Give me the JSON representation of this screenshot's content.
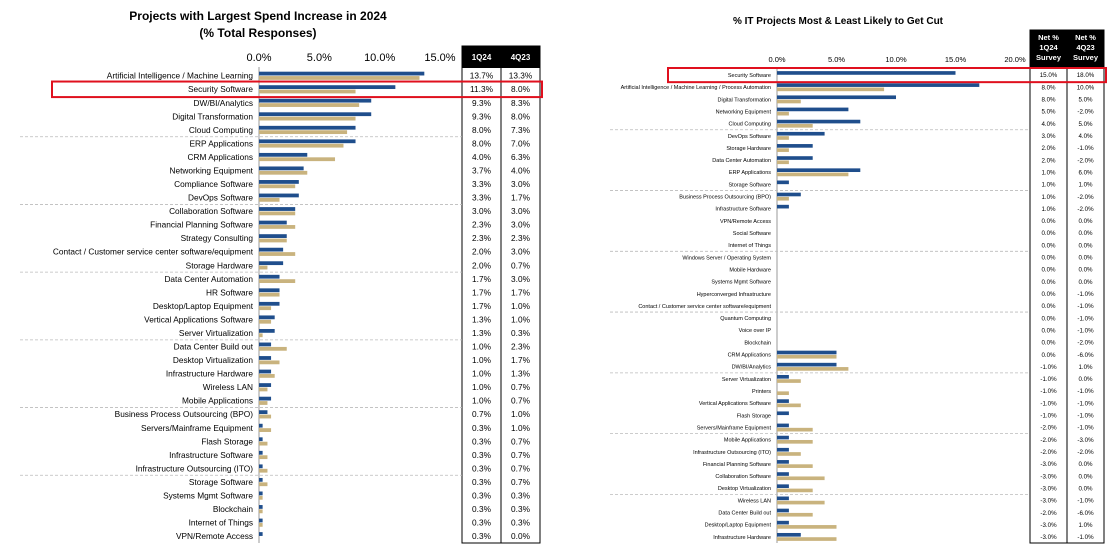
{
  "chart_data": [
    {
      "type": "bar",
      "title": "Projects with Largest Spend Increase in 2024",
      "subtitle": "(% Total Responses)",
      "xlim": [
        0,
        15
      ],
      "x_ticks": [
        "0.0%",
        "5.0%",
        "10.0%",
        "15.0%"
      ],
      "col_headers": [
        "1Q24",
        "4Q23"
      ],
      "highlight": "Security Software",
      "colors": {
        "1Q24": "#1f4e8c",
        "4Q23": "#c9b37e",
        "header_bg": "#000000",
        "highlight": "#e0101e"
      },
      "categories": [
        "Artificial Intelligence / Machine Learning",
        "Security Software",
        "DW/BI/Analytics",
        "Digital Transformation",
        "Cloud Computing",
        "ERP Applications",
        "CRM Applications",
        "Networking Equipment",
        "Compliance Software",
        "DevOps Software",
        "Collaboration Software",
        "Financial Planning Software",
        "Strategy Consulting",
        "Contact / Customer service center software/equipment",
        "Storage Hardware",
        "Data Center Automation",
        "HR Software",
        "Desktop/Laptop Equipment",
        "Vertical Applications Software",
        "Server Virtualization",
        "Data Center Build out",
        "Desktop Virtualization",
        "Infrastructure Hardware",
        "Wireless LAN",
        "Mobile Applications",
        "Business Process Outsourcing (BPO)",
        "Servers/Mainframe Equipment",
        "Flash Storage",
        "Infrastructure Software",
        "Infrastructure Outsourcing (ITO)",
        "Storage Software",
        "Systems Mgmt Software",
        "Blockchain",
        "Internet of Things",
        "VPN/Remote Access"
      ],
      "series": [
        {
          "name": "1Q24",
          "values": [
            13.7,
            11.3,
            9.3,
            9.3,
            8.0,
            8.0,
            4.0,
            3.7,
            3.3,
            3.3,
            3.0,
            2.3,
            2.3,
            2.0,
            2.0,
            1.7,
            1.7,
            1.7,
            1.3,
            1.3,
            1.0,
            1.0,
            1.0,
            1.0,
            1.0,
            0.7,
            0.3,
            0.3,
            0.3,
            0.3,
            0.3,
            0.3,
            0.3,
            0.3,
            0.3
          ],
          "labels": [
            "13.7%",
            "11.3%",
            "9.3%",
            "9.3%",
            "8.0%",
            "8.0%",
            "4.0%",
            "3.7%",
            "3.3%",
            "3.3%",
            "3.0%",
            "2.3%",
            "2.3%",
            "2.0%",
            "2.0%",
            "1.7%",
            "1.7%",
            "1.7%",
            "1.3%",
            "1.3%",
            "1.0%",
            "1.0%",
            "1.0%",
            "1.0%",
            "1.0%",
            "0.7%",
            "0.3%",
            "0.3%",
            "0.3%",
            "0.3%",
            "0.3%",
            "0.3%",
            "0.3%",
            "0.3%",
            "0.3%"
          ]
        },
        {
          "name": "4Q23",
          "values": [
            13.3,
            8.0,
            8.3,
            8.0,
            7.3,
            7.0,
            6.3,
            4.0,
            3.0,
            1.7,
            3.0,
            3.0,
            2.3,
            3.0,
            0.7,
            3.0,
            1.7,
            1.0,
            1.0,
            0.3,
            2.3,
            1.7,
            1.3,
            0.7,
            0.7,
            1.0,
            1.0,
            0.7,
            0.7,
            0.7,
            0.7,
            0.3,
            0.3,
            0.3,
            0.0
          ],
          "labels": [
            "13.3%",
            "8.0%",
            "8.3%",
            "8.0%",
            "7.3%",
            "7.0%",
            "6.3%",
            "4.0%",
            "3.0%",
            "1.7%",
            "3.0%",
            "3.0%",
            "2.3%",
            "3.0%",
            "0.7%",
            "3.0%",
            "1.7%",
            "1.0%",
            "1.0%",
            "0.3%",
            "2.3%",
            "1.7%",
            "1.3%",
            "0.7%",
            "0.7%",
            "1.0%",
            "1.0%",
            "0.7%",
            "0.7%",
            "0.7%",
            "0.7%",
            "0.3%",
            "0.3%",
            "0.3%",
            "0.0%"
          ]
        }
      ]
    },
    {
      "type": "bar",
      "title": "% IT Projects Most & Least Likely to Get Cut",
      "xlim": [
        0,
        20
      ],
      "x_ticks": [
        "0.0%",
        "5.0%",
        "10.0%",
        "15.0%",
        "20.0%"
      ],
      "col_headers": [
        "Net % 1Q24 Survey",
        "Net % 4Q23 Survey"
      ],
      "highlight": "Security Software",
      "colors": {
        "1Q24": "#1f4e8c",
        "4Q23": "#c9b37e",
        "header_bg": "#000000",
        "highlight": "#e0101e"
      },
      "categories": [
        "Security Software",
        "Artificial Intelligence / Machine Learning / Process Automation",
        "Digital Transformation",
        "Networking Equipment",
        "Cloud Computing",
        "DevOps Software",
        "Storage Hardware",
        "Data Center Automation",
        "ERP Applications",
        "Storage Software",
        "Business Process Outsourcing (BPO)",
        "Infrastructure Software",
        "VPN/Remote Access",
        "Social Software",
        "Internet of Things",
        "Windows Server / Operating System",
        "Mobile Hardware",
        "Systems Mgmt Software",
        "Hyperconverged Infrastructure",
        "Contact / Customer service center software/equipment",
        "Quantum Computing",
        "Voice over IP",
        "Blockchain",
        "CRM Applications",
        "DW/BI/Analytics",
        "Server Virtualization",
        "Printers",
        "Vertical Applications Software",
        "Flash Storage",
        "Servers/Mainframe Equipment",
        "Mobile Applications",
        "Infrastructure Outsourcing (ITO)",
        "Financial Planning Software",
        "Collaboration Software",
        "Desktop Virtualization",
        "Wireless LAN",
        "Data Center Build out",
        "Desktop/Laptop Equipment",
        "Infrastructure Hardware"
      ],
      "series": [
        {
          "name": "Net % 1Q24 Survey",
          "values": [
            15.0,
            17.0,
            10.0,
            6.0,
            7.0,
            4.0,
            3.0,
            3.0,
            7.0,
            1.0,
            2.0,
            1.0,
            0,
            0,
            0,
            0,
            0,
            0,
            0,
            0,
            0,
            0,
            0,
            5.0,
            5.0,
            1.0,
            0,
            1.0,
            1.0,
            1.0,
            1.0,
            1.0,
            1.0,
            1.0,
            1.0,
            1.0,
            1.0,
            1.0,
            2.0
          ],
          "labels": [
            "15.0%",
            "8.0%",
            "8.0%",
            "5.0%",
            "4.0%",
            "3.0%",
            "2.0%",
            "2.0%",
            "1.0%",
            "1.0%",
            "1.0%",
            "1.0%",
            "0.0%",
            "0.0%",
            "0.0%",
            "0.0%",
            "0.0%",
            "0.0%",
            "0.0%",
            "0.0%",
            "0.0%",
            "0.0%",
            "0.0%",
            "0.0%",
            "-1.0%",
            "-1.0%",
            "-1.0%",
            "-1.0%",
            "-1.0%",
            "-2.0%",
            "-2.0%",
            "-2.0%",
            "-3.0%",
            "-3.0%",
            "-3.0%",
            "-3.0%",
            "-2.0%",
            "-3.0%",
            "-3.0%"
          ]
        },
        {
          "name": "Net % 4Q23 Survey",
          "values": [
            0,
            9.0,
            2.0,
            1.0,
            3.0,
            1.0,
            1.0,
            1.0,
            6.0,
            0,
            1.0,
            0,
            0,
            0,
            0,
            0,
            0,
            0,
            0,
            0,
            0,
            0,
            0,
            5.0,
            6.0,
            2.0,
            1.0,
            2.0,
            0,
            3.0,
            3.0,
            2.0,
            3.0,
            4.0,
            3.0,
            4.0,
            3.0,
            5.0,
            5.0
          ],
          "labels": [
            "18.0%",
            "10.0%",
            "5.0%",
            "-2.0%",
            "5.0%",
            "4.0%",
            "-1.0%",
            "-2.0%",
            "6.0%",
            "1.0%",
            "-2.0%",
            "-2.0%",
            "0.0%",
            "0.0%",
            "0.0%",
            "0.0%",
            "0.0%",
            "0.0%",
            "-1.0%",
            "-1.0%",
            "-1.0%",
            "-1.0%",
            "-2.0%",
            "-6.0%",
            "1.0%",
            "0.0%",
            "-1.0%",
            "-1.0%",
            "-1.0%",
            "-1.0%",
            "-3.0%",
            "-2.0%",
            "0.0%",
            "0.0%",
            "0.0%",
            "-1.0%",
            "-6.0%",
            "1.0%",
            "-1.0%"
          ]
        }
      ]
    }
  ]
}
